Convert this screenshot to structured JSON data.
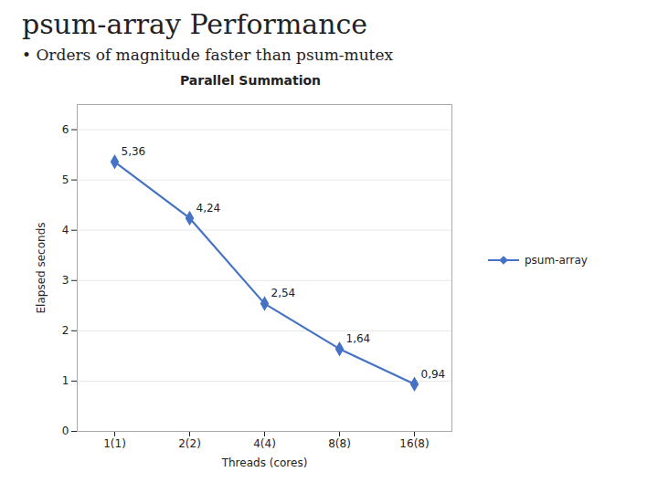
{
  "chart_data": {
    "type": "line",
    "title": "psum-array Performance",
    "subtitle": "• Orders of magnitude faster than psum-mutex",
    "chart_title": "Parallel Summation",
    "x_label": "Threads (cores)",
    "y_label": "Elapsed seconds",
    "categories": [
      "1(1)",
      "2(2)",
      "4(4)",
      "8(8)",
      "16(8)"
    ],
    "series": [
      {
        "name": "psum-array",
        "color": "#4472C4",
        "marker": "diamond",
        "line_style": "solid",
        "values": [
          5.36,
          4.24,
          2.54,
          1.64,
          0.94
        ],
        "value_labels": [
          "5,36",
          "4,24",
          "2,54",
          "1,64",
          "0,94"
        ]
      }
    ],
    "data_labels": true,
    "ylim": [
      0,
      6.5
    ],
    "yticks": [
      0,
      1,
      2,
      3,
      4,
      5,
      6
    ],
    "grid": true,
    "legend": "right"
  }
}
